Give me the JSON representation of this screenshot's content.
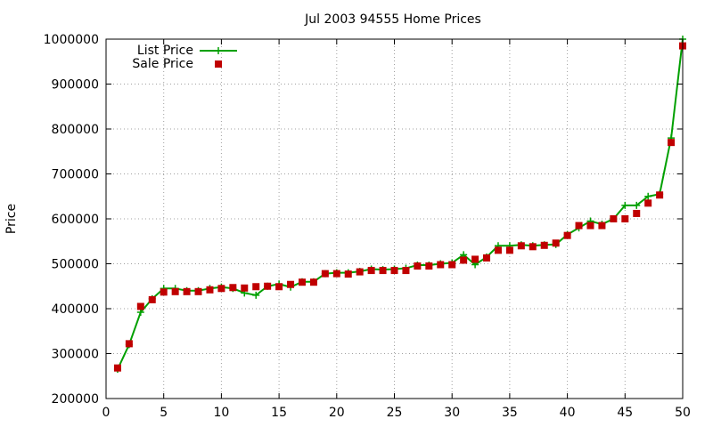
{
  "chart_data": {
    "type": "line",
    "title": "Jul 2003 94555 Home Prices",
    "xlabel": "",
    "ylabel": "Price",
    "xlim": [
      0,
      50
    ],
    "ylim": [
      200000,
      1000000
    ],
    "xticks": [
      0,
      5,
      10,
      15,
      20,
      25,
      30,
      35,
      40,
      45,
      50
    ],
    "yticks": [
      200000,
      300000,
      400000,
      500000,
      600000,
      700000,
      800000,
      900000,
      1000000
    ],
    "grid": true,
    "legend_position": "top-left",
    "x": [
      1,
      2,
      3,
      4,
      5,
      6,
      7,
      8,
      9,
      10,
      11,
      12,
      13,
      14,
      15,
      16,
      17,
      18,
      19,
      20,
      21,
      22,
      23,
      24,
      25,
      26,
      27,
      28,
      29,
      30,
      31,
      32,
      33,
      34,
      35,
      36,
      37,
      38,
      39,
      40,
      41,
      42,
      43,
      44,
      45,
      46,
      47,
      48,
      49,
      50
    ],
    "series": [
      {
        "name": "List Price",
        "style": "line-with-plus-markers",
        "color": "#00a000",
        "values": [
          265000,
          320000,
          392000,
          422000,
          445000,
          445000,
          440000,
          440000,
          445000,
          448000,
          445000,
          435000,
          430000,
          450000,
          455000,
          448000,
          460000,
          460000,
          478000,
          480000,
          480000,
          483000,
          488000,
          487000,
          488000,
          490000,
          497000,
          497000,
          500000,
          502000,
          520000,
          498000,
          515000,
          540000,
          540000,
          542000,
          540000,
          542000,
          543000,
          565000,
          580000,
          595000,
          588000,
          600000,
          630000,
          630000,
          650000,
          655000,
          780000,
          1000000
        ]
      },
      {
        "name": "Sale Price",
        "style": "square-markers",
        "color": "#c00000",
        "values": [
          268000,
          322000,
          405000,
          420000,
          437000,
          438000,
          438000,
          438000,
          442000,
          445000,
          447000,
          446000,
          449000,
          450000,
          449000,
          454000,
          459000,
          459000,
          478000,
          478000,
          477000,
          482000,
          485000,
          485000,
          485000,
          485000,
          495000,
          495000,
          498000,
          498000,
          508000,
          510000,
          513000,
          530000,
          530000,
          540000,
          538000,
          541000,
          546000,
          563000,
          585000,
          585000,
          585000,
          600000,
          600000,
          612000,
          635000,
          653000,
          770000,
          985000
        ]
      }
    ]
  }
}
